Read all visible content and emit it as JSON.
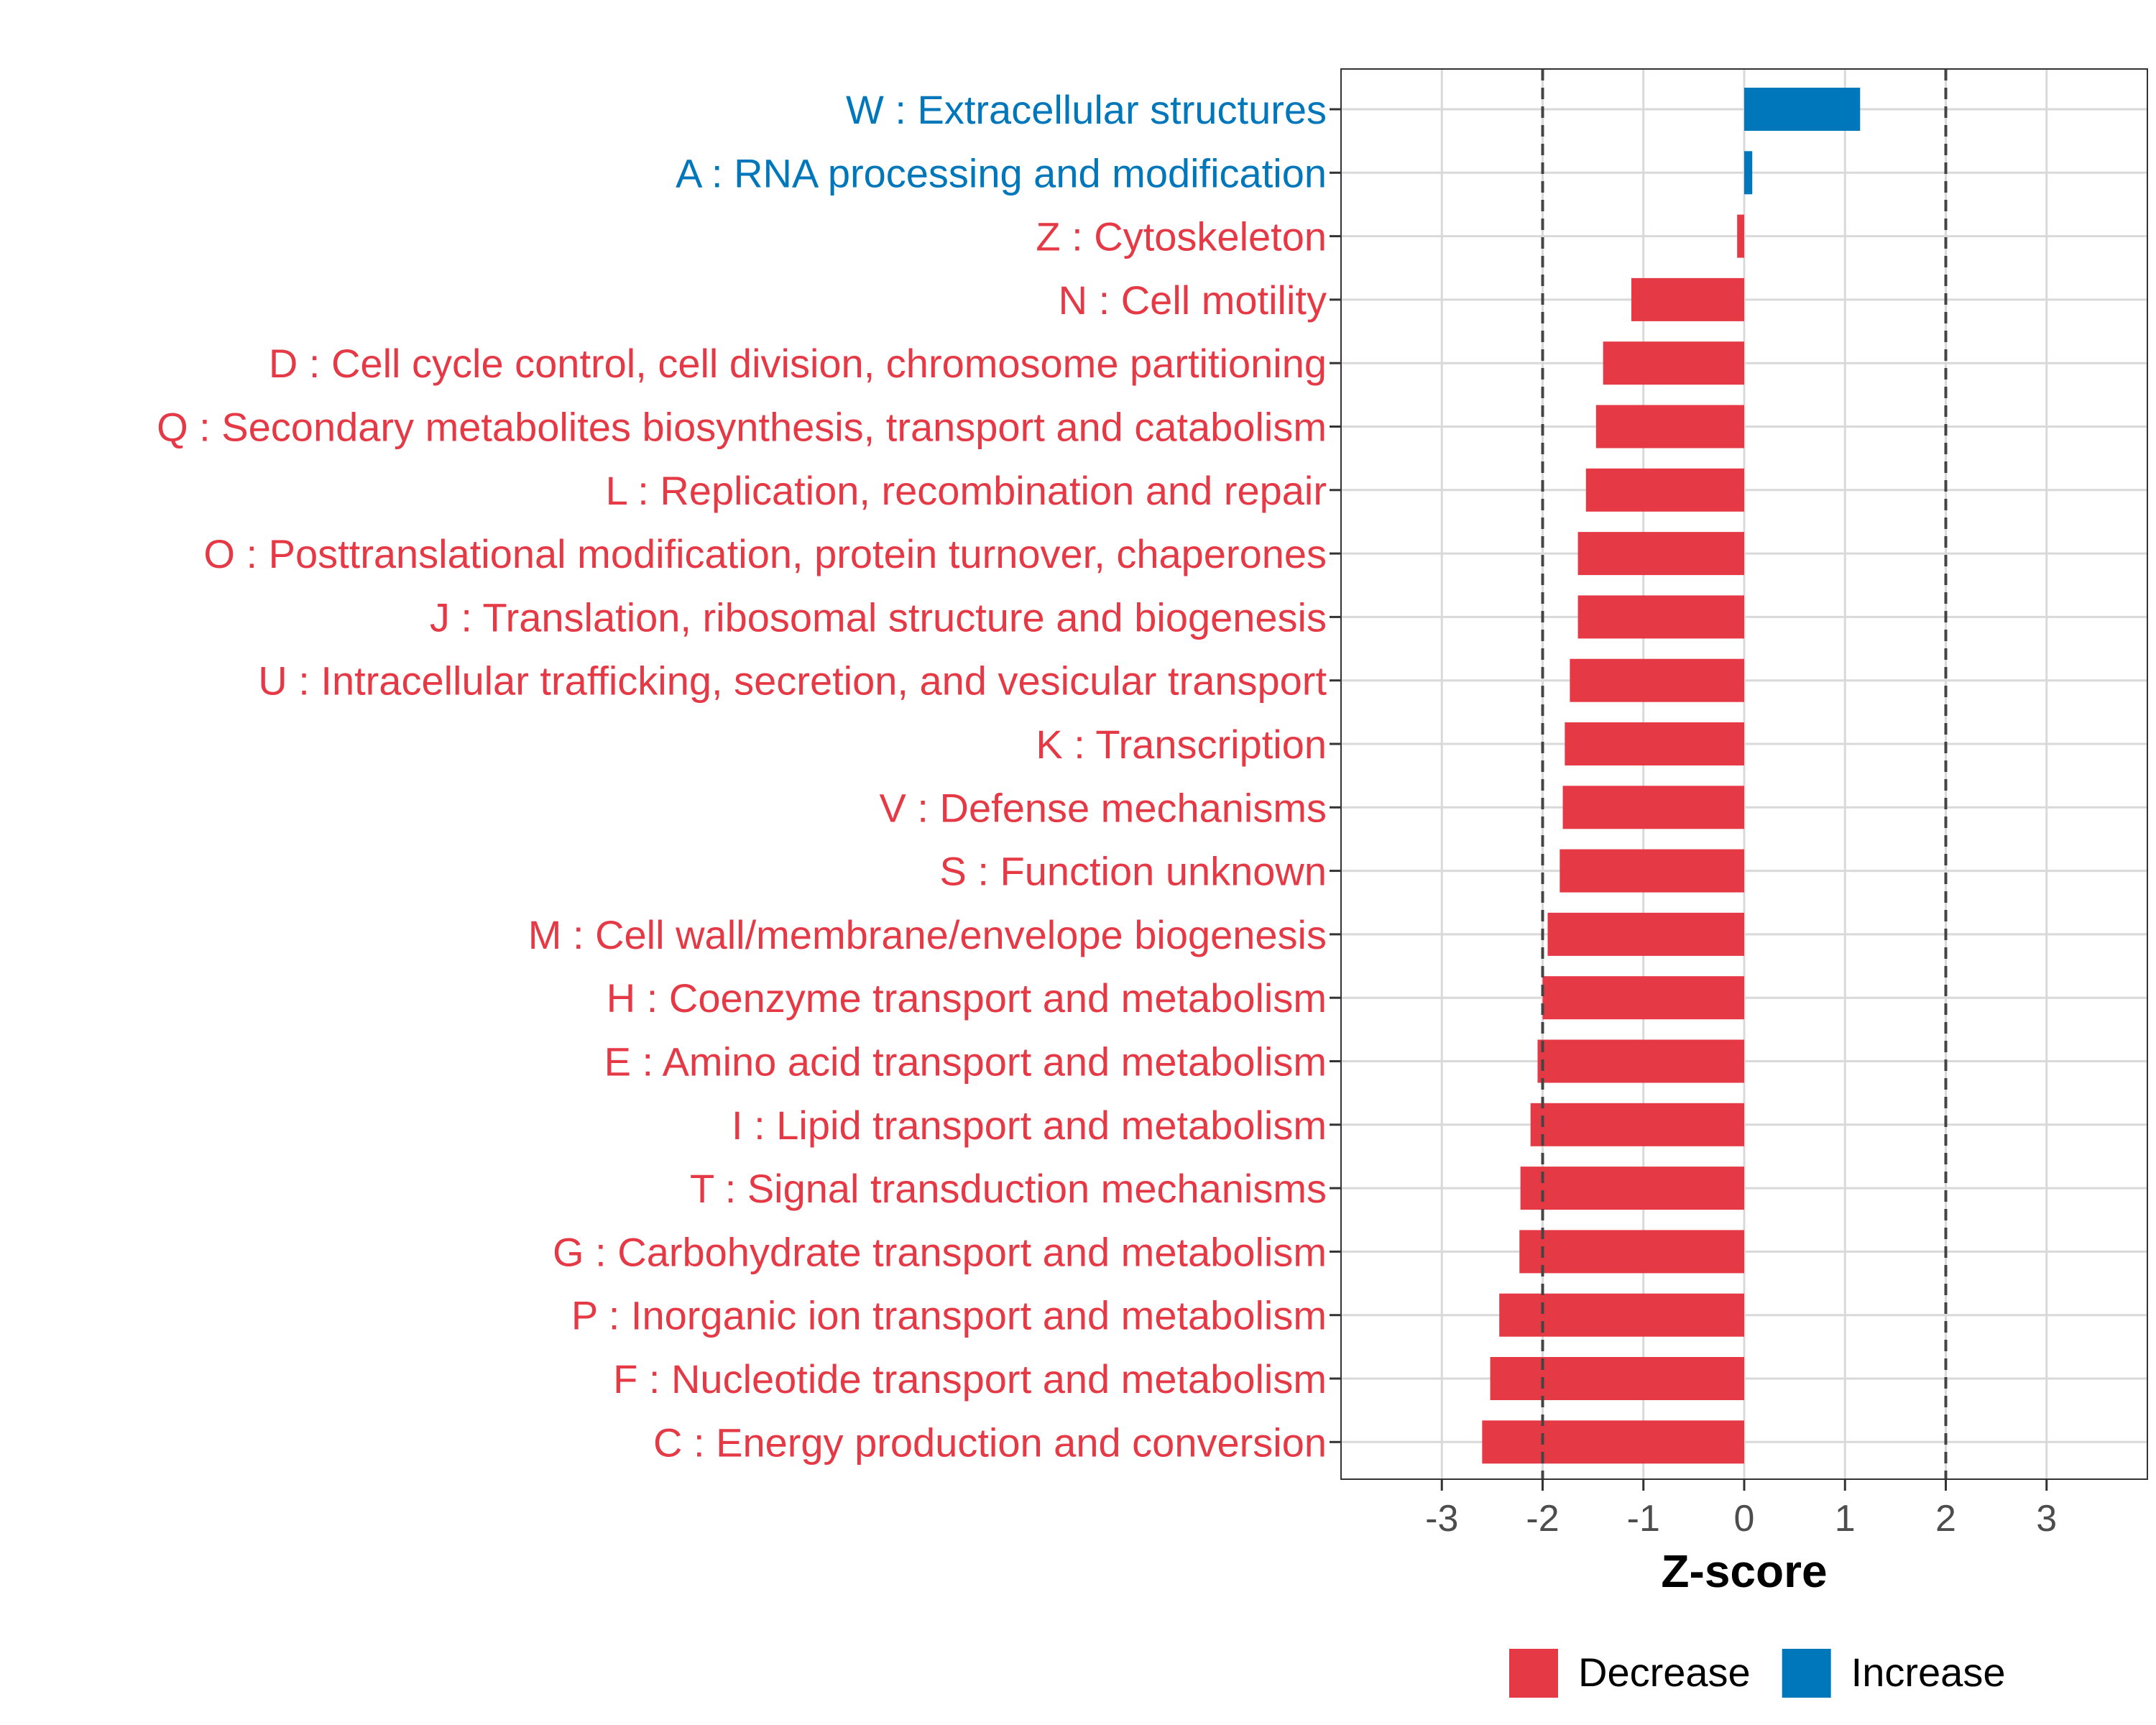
{
  "chart_data": {
    "type": "bar",
    "orientation": "horizontal",
    "title": "",
    "xlabel": "Z-score",
    "ylabel": "",
    "xlim": [
      -4,
      4
    ],
    "xticks": [
      "-3",
      "-2",
      "-1",
      "0",
      "1",
      "2",
      "3"
    ],
    "xtick_values": [
      -3,
      -2,
      -1,
      0,
      1,
      2,
      3
    ],
    "reference_lines": [
      -2,
      2
    ],
    "grid": true,
    "categories": [
      "W : Extracellular structures",
      "A : RNA processing and modification",
      "Z : Cytoskeleton",
      "N : Cell motility",
      "D : Cell cycle control, cell division, chromosome partitioning",
      "Q : Secondary metabolites biosynthesis, transport and catabolism",
      "L : Replication, recombination and repair",
      "O : Posttranslational modification, protein turnover, chaperones",
      "J : Translation, ribosomal structure and biogenesis",
      "U : Intracellular trafficking, secretion, and vesicular transport",
      "K : Transcription",
      "V : Defense mechanisms",
      "S : Function unknown",
      "M : Cell wall/membrane/envelope biogenesis",
      "H : Coenzyme transport and metabolism",
      "E : Amino acid transport and metabolism",
      "I : Lipid transport and metabolism",
      "T : Signal transduction mechanisms",
      "G : Carbohydrate transport and metabolism",
      "P : Inorganic ion transport and metabolism",
      "F : Nucleotide transport and metabolism",
      "C : Energy production and conversion"
    ],
    "values": [
      1.15,
      0.08,
      -0.07,
      -1.12,
      -1.4,
      -1.47,
      -1.57,
      -1.65,
      -1.65,
      -1.73,
      -1.78,
      -1.8,
      -1.83,
      -1.95,
      -2.0,
      -2.05,
      -2.12,
      -2.22,
      -2.23,
      -2.43,
      -2.52,
      -2.6
    ],
    "groups": [
      "Increase",
      "Increase",
      "Decrease",
      "Decrease",
      "Decrease",
      "Decrease",
      "Decrease",
      "Decrease",
      "Decrease",
      "Decrease",
      "Decrease",
      "Decrease",
      "Decrease",
      "Decrease",
      "Decrease",
      "Decrease",
      "Decrease",
      "Decrease",
      "Decrease",
      "Decrease",
      "Decrease",
      "Decrease"
    ],
    "legend": [
      {
        "label": "Decrease",
        "color": "#e63946"
      },
      {
        "label": "Increase",
        "color": "#0077bb"
      }
    ],
    "legend_position": "bottom"
  }
}
